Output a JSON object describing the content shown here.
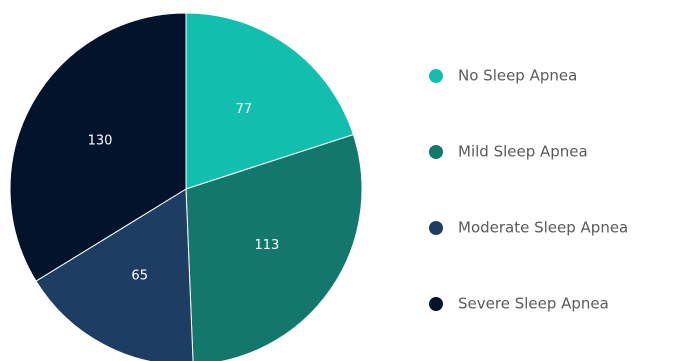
{
  "chart_data": {
    "type": "pie",
    "title": "",
    "categories": [
      "No Sleep Apnea",
      "Mild Sleep Apnea",
      "Moderate Sleep Apnea",
      "Severe Sleep Apnea"
    ],
    "values": [
      77,
      113,
      65,
      130
    ],
    "colors": [
      "#12bfae",
      "#13776c",
      "#1e3d63",
      "#02132b"
    ],
    "legend_position": "right",
    "data_labels": true
  }
}
